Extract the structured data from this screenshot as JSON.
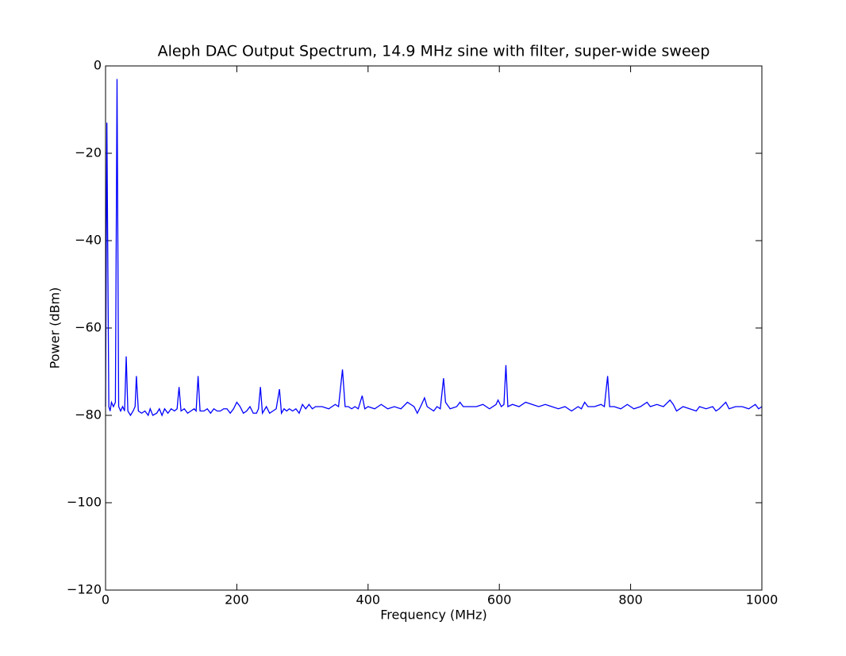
{
  "chart_data": {
    "type": "line",
    "title": "Aleph DAC Output Spectrum, 14.9 MHz sine with filter, super-wide sweep",
    "xlabel": "Frequency (MHz)",
    "ylabel": "Power (dBm)",
    "color": "#0000ff",
    "xlim": [
      0,
      1000
    ],
    "ylim": [
      -120,
      0
    ],
    "xticks": [
      0,
      200,
      400,
      600,
      800,
      1000
    ],
    "yticks": [
      {
        "value": -120,
        "label": "−120"
      },
      {
        "value": -100,
        "label": "−100"
      },
      {
        "value": -80,
        "label": "−80"
      },
      {
        "value": -60,
        "label": "−60"
      },
      {
        "value": -40,
        "label": "−40"
      },
      {
        "value": -20,
        "label": "−20"
      },
      0
    ],
    "x": [
      0,
      2,
      5,
      7,
      9,
      12,
      15,
      17.5,
      20,
      23,
      26,
      29,
      31.5,
      34,
      38,
      42,
      45,
      47,
      50,
      55,
      60,
      65,
      68,
      72,
      78,
      82,
      86,
      90,
      95,
      100,
      105,
      109,
      112,
      115,
      120,
      125,
      130,
      135,
      138,
      141,
      144,
      150,
      155,
      160,
      165,
      170,
      175,
      180,
      185,
      190,
      195,
      200,
      205,
      210,
      215,
      220,
      225,
      230,
      233,
      236,
      239,
      245,
      250,
      255,
      260,
      265,
      268,
      272,
      276,
      280,
      285,
      290,
      295,
      300,
      305,
      310,
      315,
      320,
      330,
      340,
      350,
      355,
      361,
      365,
      370,
      375,
      380,
      385,
      391,
      395,
      400,
      410,
      420,
      430,
      440,
      450,
      460,
      465,
      470,
      475,
      480,
      486,
      490,
      495,
      500,
      505,
      510,
      515,
      518,
      525,
      535,
      540,
      545,
      555,
      565,
      575,
      585,
      595,
      598,
      603,
      607,
      610,
      613,
      620,
      630,
      640,
      650,
      660,
      670,
      680,
      690,
      700,
      710,
      720,
      725,
      730,
      735,
      745,
      755,
      760,
      765,
      768,
      775,
      785,
      795,
      805,
      815,
      825,
      830,
      840,
      850,
      860,
      865,
      870,
      880,
      890,
      900,
      905,
      915,
      925,
      930,
      935,
      945,
      950,
      960,
      970,
      980,
      990,
      995,
      1000
    ],
    "values": [
      -78,
      -13,
      -78,
      -79,
      -77,
      -78,
      -77,
      -3,
      -78,
      -79,
      -78,
      -79,
      -66.5,
      -79,
      -80,
      -79,
      -78,
      -71,
      -79,
      -79.5,
      -79,
      -80,
      -78.5,
      -80,
      -79.5,
      -78.5,
      -80,
      -78.5,
      -79.5,
      -78.5,
      -79,
      -78.5,
      -73.5,
      -79,
      -78.5,
      -79.5,
      -79,
      -78.5,
      -79,
      -71,
      -79,
      -79,
      -78.5,
      -79.5,
      -78.5,
      -79,
      -79,
      -78.5,
      -78.5,
      -79.5,
      -78.5,
      -77,
      -78,
      -79.5,
      -79,
      -78,
      -79.5,
      -79.5,
      -78.5,
      -73.5,
      -79.5,
      -78,
      -79.5,
      -79,
      -78.5,
      -74,
      -79.5,
      -78.5,
      -79,
      -78.5,
      -79,
      -78.5,
      -79.5,
      -77.5,
      -78.5,
      -77.5,
      -78.5,
      -78,
      -78,
      -78.5,
      -77.5,
      -78,
      -69.5,
      -78,
      -78,
      -78.5,
      -78,
      -78.5,
      -75.5,
      -78.5,
      -78,
      -78.5,
      -77.5,
      -78.5,
      -78,
      -78.5,
      -77,
      -77.5,
      -78,
      -79.5,
      -78,
      -76,
      -78,
      -78.5,
      -79,
      -78,
      -78.5,
      -71.5,
      -77,
      -78.5,
      -78,
      -77,
      -78,
      -78,
      -78,
      -77.5,
      -78.5,
      -77.5,
      -76.5,
      -78,
      -77.5,
      -68.5,
      -78,
      -77.5,
      -78,
      -77,
      -77.5,
      -78,
      -77.5,
      -78,
      -78.5,
      -78,
      -79,
      -78,
      -78.5,
      -77,
      -78,
      -78,
      -77.5,
      -78,
      -71,
      -78,
      -78,
      -78.5,
      -77.5,
      -78.5,
      -78,
      -77,
      -78,
      -77.5,
      -78,
      -76.5,
      -77.5,
      -79,
      -78,
      -78.5,
      -79,
      -78,
      -78.5,
      -78,
      -79,
      -78.5,
      -77,
      -78.5,
      -78,
      -78,
      -78.5,
      -77.5,
      -78.5,
      -78
    ]
  }
}
